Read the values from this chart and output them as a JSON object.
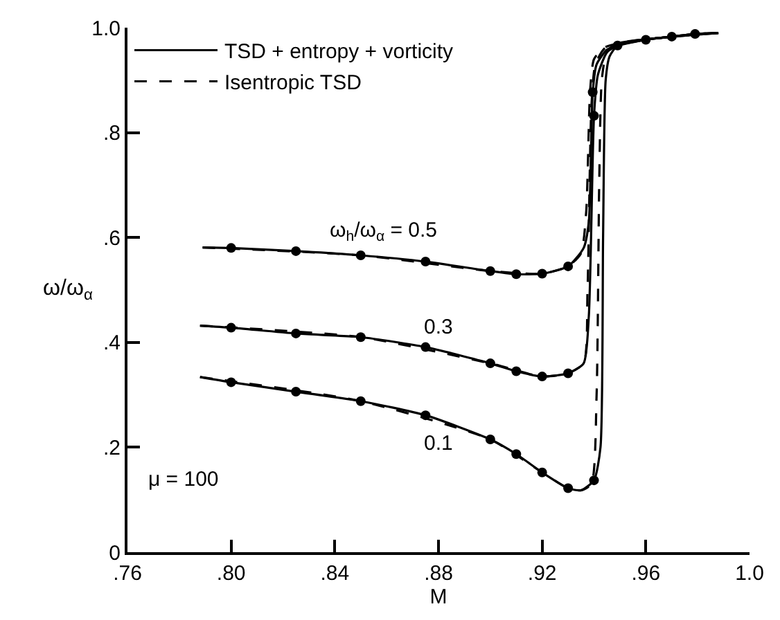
{
  "chart_data": {
    "type": "line",
    "xlabel": "M",
    "ylabel": "ω/ω$_{α}$",
    "xlim": [
      0.76,
      1.0
    ],
    "ylim": [
      0,
      1.0
    ],
    "xticks": [
      {
        "value": 0.76,
        "label": ".76"
      },
      {
        "value": 0.8,
        "label": ".80"
      },
      {
        "value": 0.84,
        "label": ".84"
      },
      {
        "value": 0.88,
        "label": ".88"
      },
      {
        "value": 0.92,
        "label": ".92"
      },
      {
        "value": 0.96,
        "label": ".96"
      },
      {
        "value": 1.0,
        "label": "1.0"
      }
    ],
    "yticks": [
      0,
      {
        "value": 0.2,
        "label": ".2"
      },
      {
        "value": 0.4,
        "label": ".4"
      },
      {
        "value": 0.6,
        "label": ".6"
      },
      {
        "value": 0.8,
        "label": ".8"
      },
      {
        "value": 1.0,
        "label": "1.0"
      }
    ],
    "legend": "top left",
    "series": [
      {
        "name": "TSD + entropy + vorticity",
        "color": "#000000",
        "line_style": "solid",
        "marker": "none",
        "x": [
          0.789,
          0.8,
          0.825,
          0.85,
          0.875,
          0.9,
          0.91,
          0.92,
          0.93,
          0.936,
          0.938,
          0.9395,
          0.941,
          0.945,
          0.9491,
          0.96,
          0.97,
          0.979,
          0.988
        ],
        "values": [
          0.581,
          0.58,
          0.574,
          0.566,
          0.554,
          0.536,
          0.53,
          0.531,
          0.545,
          0.58,
          0.63,
          0.877,
          0.93,
          0.958,
          0.966,
          0.977,
          0.983,
          0.988,
          0.99
        ]
      },
      {
        "color": "#000000",
        "line_style": "solid",
        "marker": "none",
        "x": [
          0.788,
          0.8,
          0.825,
          0.85,
          0.875,
          0.9,
          0.91,
          0.92,
          0.93,
          0.936,
          0.938,
          0.94,
          0.9415,
          0.945,
          0.9491,
          0.96,
          0.97,
          0.979,
          0.988
        ],
        "values": [
          0.432,
          0.428,
          0.417,
          0.41,
          0.391,
          0.36,
          0.345,
          0.335,
          0.341,
          0.36,
          0.45,
          0.832,
          0.91,
          0.953,
          0.966,
          0.977,
          0.983,
          0.988,
          0.99
        ]
      },
      {
        "color": "#000000",
        "line_style": "solid",
        "marker": "none",
        "x": [
          0.788,
          0.8,
          0.825,
          0.85,
          0.875,
          0.9,
          0.91,
          0.92,
          0.93,
          0.935,
          0.94,
          0.9425,
          0.9435,
          0.9445,
          0.946,
          0.9491,
          0.96,
          0.97,
          0.979,
          0.988
        ],
        "values": [
          0.334,
          0.324,
          0.306,
          0.288,
          0.261,
          0.215,
          0.187,
          0.152,
          0.122,
          0.118,
          0.137,
          0.2,
          0.6,
          0.9,
          0.945,
          0.966,
          0.977,
          0.983,
          0.988,
          0.99
        ]
      },
      {
        "name": "Isentropic TSD",
        "color": "#000000",
        "line_style": "dashed",
        "marker": "none",
        "x": [
          0.789,
          0.85,
          0.9,
          0.92,
          0.93,
          0.935,
          0.937,
          0.9385,
          0.94,
          0.944,
          0.9491,
          0.96,
          0.988
        ],
        "values": [
          0.581,
          0.566,
          0.536,
          0.531,
          0.545,
          0.57,
          0.65,
          0.88,
          0.94,
          0.962,
          0.97,
          0.978,
          0.99
        ]
      },
      {
        "color": "#000000",
        "line_style": "dashed",
        "marker": "none",
        "x": [
          0.788,
          0.85,
          0.9,
          0.92,
          0.93,
          0.936,
          0.9375,
          0.939,
          0.9405,
          0.944,
          0.9491,
          0.96,
          0.988
        ],
        "values": [
          0.432,
          0.41,
          0.36,
          0.335,
          0.341,
          0.36,
          0.5,
          0.85,
          0.93,
          0.96,
          0.97,
          0.978,
          0.99
        ]
      },
      {
        "color": "#000000",
        "line_style": "dashed",
        "marker": "none",
        "x": [
          0.788,
          0.85,
          0.9,
          0.92,
          0.93,
          0.935,
          0.939,
          0.941,
          0.942,
          0.943,
          0.945,
          0.9491,
          0.96,
          0.988
        ],
        "values": [
          0.334,
          0.288,
          0.215,
          0.152,
          0.122,
          0.118,
          0.13,
          0.3,
          0.7,
          0.9,
          0.955,
          0.97,
          0.978,
          0.99
        ]
      },
      {
        "type": "scatter",
        "color": "#000000",
        "marker": "circle",
        "x": [
          0.8,
          0.825,
          0.85,
          0.875,
          0.9,
          0.91,
          0.92,
          0.93,
          0.9395,
          0.8,
          0.825,
          0.85,
          0.875,
          0.9,
          0.91,
          0.92,
          0.93,
          0.94,
          0.8,
          0.825,
          0.85,
          0.875,
          0.9,
          0.91,
          0.92,
          0.93,
          0.94,
          0.9491,
          0.96,
          0.97,
          0.979
        ],
        "values": [
          0.58,
          0.574,
          0.566,
          0.554,
          0.536,
          0.53,
          0.531,
          0.545,
          0.877,
          0.428,
          0.417,
          0.41,
          0.391,
          0.36,
          0.345,
          0.335,
          0.341,
          0.832,
          0.324,
          0.306,
          0.288,
          0.261,
          0.215,
          0.187,
          0.152,
          0.122,
          0.137,
          0.966,
          0.977,
          0.983,
          0.988
        ]
      }
    ],
    "annotations": [
      "ω$_{h}$/ω$_{α}$ = 0.5",
      "0.3",
      "0.1",
      "μ = 100"
    ]
  }
}
